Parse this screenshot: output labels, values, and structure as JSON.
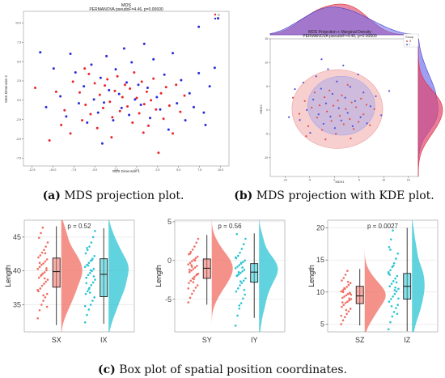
{
  "captions": {
    "a_label": "(a)",
    "a_text": " MDS projection plot.",
    "b_label": "(b)",
    "b_text": " MDS projection with KDE plot.",
    "c_label": "(c)",
    "c_text": " Box plot of spatial position coordinates."
  },
  "chart_data": [
    {
      "type": "scatter",
      "id": "mds",
      "title": "MDS",
      "subtitle": "PERMANOVA pseudoF=4.46, p=0.00600",
      "xlabel": "MDS Dimension 1",
      "ylabel": "MDS Dimension 2",
      "xlim": [
        -13.5,
        11
      ],
      "ylim": [
        -8.5,
        11.5
      ],
      "xticks": [
        -12.5,
        -10.0,
        -7.5,
        -5.0,
        -2.5,
        0.0,
        2.5,
        5.0,
        7.5,
        10.0
      ],
      "yticks": [
        -7.5,
        -5.0,
        -2.5,
        0.0,
        2.5,
        5.0,
        7.5,
        10.0
      ],
      "legend": "top-right",
      "colors": {
        "S": "#e8262b",
        "I": "#2b2bd8"
      },
      "series": [
        {
          "name": "S",
          "points": [
            [
              -12.1,
              1.6
            ],
            [
              -10.4,
              -5.2
            ],
            [
              -9.6,
              1.1
            ],
            [
              -8.6,
              -1.3
            ],
            [
              -7.9,
              -4.3
            ],
            [
              -7.6,
              2.4
            ],
            [
              -6.8,
              1.0
            ],
            [
              -6.5,
              -2.6
            ],
            [
              -6.1,
              -0.6
            ],
            [
              -5.7,
              3.4
            ],
            [
              -5.5,
              -1.8
            ],
            [
              -5.0,
              2.2
            ],
            [
              -4.7,
              -3.6
            ],
            [
              -4.4,
              0.7
            ],
            [
              -4.0,
              -1.0
            ],
            [
              -3.8,
              1.9
            ],
            [
              -3.5,
              2.7
            ],
            [
              -3.2,
              -0.2
            ],
            [
              -2.9,
              -2.2
            ],
            [
              -2.6,
              1.2
            ],
            [
              -2.3,
              3.1
            ],
            [
              -2.0,
              -1.4
            ],
            [
              -1.7,
              0.4
            ],
            [
              -1.4,
              2.0
            ],
            [
              -1.1,
              -0.8
            ],
            [
              -0.8,
              1.5
            ],
            [
              -0.5,
              -2.9
            ],
            [
              -0.3,
              3.6
            ],
            [
              0.0,
              0.3
            ],
            [
              0.3,
              -1.7
            ],
            [
              0.6,
              2.4
            ],
            [
              0.9,
              -0.5
            ],
            [
              1.2,
              1.1
            ],
            [
              1.4,
              -3.3
            ],
            [
              1.7,
              0.0
            ],
            [
              2.0,
              2.8
            ],
            [
              2.3,
              -1.2
            ],
            [
              2.6,
              -6.8
            ],
            [
              2.9,
              0.9
            ],
            [
              3.2,
              -2.4
            ],
            [
              3.5,
              1.7
            ],
            [
              3.9,
              -0.7
            ],
            [
              4.3,
              -4.3
            ],
            [
              4.7,
              2.0
            ],
            [
              5.2,
              -1.5
            ],
            [
              5.7,
              0.6
            ],
            [
              -9.0,
              -3.2
            ],
            [
              -3.0,
              -4.8
            ],
            [
              0.8,
              -4.2
            ],
            [
              -6.2,
              4.1
            ]
          ]
        },
        {
          "name": "I",
          "points": [
            [
              -11.5,
              6.2
            ],
            [
              -10.8,
              -0.9
            ],
            [
              -9.9,
              4.1
            ],
            [
              -9.1,
              0.5
            ],
            [
              -8.4,
              -2.1
            ],
            [
              -7.9,
              6.0
            ],
            [
              -7.3,
              3.6
            ],
            [
              -6.9,
              -0.4
            ],
            [
              -6.3,
              1.8
            ],
            [
              -5.9,
              -2.9
            ],
            [
              -5.4,
              4.6
            ],
            [
              -5.1,
              0.1
            ],
            [
              -4.6,
              -1.6
            ],
            [
              -4.3,
              2.9
            ],
            [
              -3.9,
              -0.3
            ],
            [
              -3.6,
              5.7
            ],
            [
              -3.3,
              1.3
            ],
            [
              -2.8,
              -2.6
            ],
            [
              -2.5,
              4.0
            ],
            [
              -2.1,
              0.8
            ],
            [
              -1.8,
              -1.0
            ],
            [
              -1.5,
              6.7
            ],
            [
              -1.2,
              2.3
            ],
            [
              -0.9,
              -1.9
            ],
            [
              -0.6,
              4.9
            ],
            [
              -0.2,
              0.1
            ],
            [
              0.2,
              2.0
            ],
            [
              0.5,
              -0.6
            ],
            [
              0.9,
              7.3
            ],
            [
              1.3,
              1.6
            ],
            [
              1.6,
              -2.3
            ],
            [
              2.0,
              5.3
            ],
            [
              2.4,
              0.4
            ],
            [
              2.8,
              -1.2
            ],
            [
              3.3,
              3.3
            ],
            [
              3.8,
              -3.8
            ],
            [
              4.3,
              6.1
            ],
            [
              4.8,
              -0.4
            ],
            [
              5.3,
              2.6
            ],
            [
              5.8,
              -2.6
            ],
            [
              6.3,
              0.9
            ],
            [
              6.8,
              -0.9
            ],
            [
              7.4,
              3.5
            ],
            [
              8.0,
              -1.6
            ],
            [
              8.7,
              1.8
            ],
            [
              9.3,
              4.2
            ],
            [
              9.7,
              10.6
            ],
            [
              8.2,
              -3.2
            ],
            [
              7.4,
              9.5
            ],
            [
              -4.1,
              -5.6
            ]
          ]
        }
      ]
    },
    {
      "type": "scatter",
      "id": "kde",
      "title": "MDS Projection + Marginal Density",
      "subtitle": "PERMANOVA pseudoF=4.46, p=0.00600",
      "xlabel": "MDS1",
      "ylabel": "MDS2",
      "xlim": [
        -13,
        17
      ],
      "ylim": [
        -14,
        15
      ],
      "xticks": [
        -10,
        -5,
        0,
        5,
        10,
        15
      ],
      "yticks": [
        -10,
        -5,
        0,
        5,
        10,
        15
      ],
      "legend_title": "Group",
      "legend": "top-right",
      "colors": {
        "S": "#e05050",
        "I": "#4f4fe0"
      },
      "ellipses": [
        {
          "name": "S",
          "cx": 0.6,
          "cy": 0.2,
          "rx": 9.2,
          "ry": 8.3,
          "color": "#f0a0a0"
        },
        {
          "name": "I",
          "cx": 1.4,
          "cy": 0.9,
          "rx": 6.8,
          "ry": 6.2,
          "color": "#a8a8e8"
        }
      ],
      "series": [
        {
          "name": "S",
          "points": [
            [
              -7.1,
              -0.8
            ],
            [
              -6.0,
              1.9
            ],
            [
              -5.3,
              -3.4
            ],
            [
              -4.6,
              0.5
            ],
            [
              -4.0,
              3.7
            ],
            [
              -3.5,
              -1.6
            ],
            [
              -3.0,
              1.0
            ],
            [
              -2.5,
              -4.2
            ],
            [
              -2.0,
              2.7
            ],
            [
              -1.5,
              -0.3
            ],
            [
              -1.0,
              4.1
            ],
            [
              -0.6,
              -2.3
            ],
            [
              -0.2,
              0.9
            ],
            [
              0.3,
              -5.0
            ],
            [
              0.7,
              2.0
            ],
            [
              1.1,
              -1.2
            ],
            [
              1.5,
              3.1
            ],
            [
              1.9,
              -3.0
            ],
            [
              2.3,
              0.2
            ],
            [
              2.7,
              5.3
            ],
            [
              3.1,
              -1.9
            ],
            [
              3.5,
              1.6
            ],
            [
              3.9,
              -4.0
            ],
            [
              4.4,
              0.6
            ],
            [
              4.9,
              -2.5
            ],
            [
              5.4,
              2.4
            ],
            [
              5.9,
              -0.9
            ],
            [
              6.5,
              1.1
            ],
            [
              7.2,
              -3.2
            ],
            [
              -5.7,
              -5.5
            ],
            [
              -1.8,
              -6.2
            ],
            [
              3.3,
              -6.0
            ],
            [
              -8.4,
              2.6
            ],
            [
              8.1,
              0.2
            ]
          ]
        },
        {
          "name": "I",
          "points": [
            [
              -8.0,
              4.4
            ],
            [
              -7.0,
              -2.1
            ],
            [
              -6.3,
              5.8
            ],
            [
              -5.6,
              0.0
            ],
            [
              -4.9,
              -4.8
            ],
            [
              -4.3,
              2.2
            ],
            [
              -3.7,
              7.1
            ],
            [
              -3.2,
              -0.9
            ],
            [
              -2.7,
              4.5
            ],
            [
              -2.2,
              -2.9
            ],
            [
              -1.7,
              1.4
            ],
            [
              -1.3,
              8.6
            ],
            [
              -0.8,
              -1.4
            ],
            [
              -0.4,
              3.4
            ],
            [
              0.1,
              -3.8
            ],
            [
              0.5,
              6.0
            ],
            [
              0.9,
              0.4
            ],
            [
              1.4,
              -2.2
            ],
            [
              1.8,
              9.4
            ],
            [
              2.2,
              2.6
            ],
            [
              2.7,
              -0.6
            ],
            [
              3.2,
              4.9
            ],
            [
              3.7,
              -3.4
            ],
            [
              4.2,
              1.9
            ],
            [
              4.8,
              7.5
            ],
            [
              5.3,
              -1.5
            ],
            [
              5.9,
              3.7
            ],
            [
              6.6,
              -2.8
            ],
            [
              7.3,
              0.8
            ],
            [
              8.4,
              2.9
            ],
            [
              9.5,
              -1.1
            ],
            [
              -9.2,
              -1.5
            ],
            [
              11.1,
              4.0
            ],
            [
              -2.6,
              10.7
            ]
          ]
        }
      ]
    },
    {
      "type": "box",
      "id": "box1",
      "annotation": "p = 0.52",
      "ylabel": "Length",
      "ylim": [
        31,
        47.5
      ],
      "yticks": [
        35,
        40,
        45
      ],
      "categories": [
        "SX",
        "IX"
      ],
      "colors": [
        "#f06e63",
        "#2bc4d4"
      ],
      "boxes": [
        {
          "min": 32.0,
          "q1": 37.6,
          "median": 39.9,
          "q3": 41.9,
          "max": 46.6
        },
        {
          "min": 32.2,
          "q1": 36.2,
          "median": 39.5,
          "q3": 41.8,
          "max": 46.3
        }
      ],
      "points": [
        [
          33.0,
          34.2,
          35.0,
          35.6,
          36.1,
          36.6,
          37.0,
          37.4,
          37.8,
          38.1,
          38.4,
          38.7,
          39.0,
          39.3,
          39.6,
          39.8,
          40.1,
          40.3,
          40.6,
          40.9,
          41.1,
          41.4,
          41.7,
          42.0,
          42.3,
          42.7,
          43.1,
          43.6,
          44.2,
          44.9,
          45.6,
          46.4,
          38.9,
          40.4,
          37.2,
          41.2,
          39.4,
          36.4,
          42.6,
          34.7
        ],
        [
          32.4,
          33.5,
          34.3,
          35.0,
          35.6,
          36.1,
          36.6,
          37.0,
          37.5,
          37.9,
          38.3,
          38.7,
          39.0,
          39.4,
          39.7,
          40.0,
          40.3,
          40.6,
          40.9,
          41.2,
          41.5,
          41.8,
          42.2,
          42.6,
          43.1,
          43.6,
          44.2,
          45.0,
          45.9,
          38.2,
          40.8,
          36.8,
          41.6,
          39.2,
          34.8,
          43.4,
          37.3,
          40.1
        ]
      ]
    },
    {
      "type": "box",
      "id": "box2",
      "annotation": "p = 0.56",
      "ylabel": "Length",
      "ylim": [
        -9.2,
        5.2
      ],
      "yticks": [
        -5,
        0,
        5
      ],
      "categories": [
        "SY",
        "IY"
      ],
      "colors": [
        "#f06e63",
        "#2bc4d4"
      ],
      "boxes": [
        {
          "min": -5.7,
          "q1": -2.3,
          "median": -1.0,
          "q3": 0.2,
          "max": 3.3
        },
        {
          "min": -7.4,
          "q1": -2.8,
          "median": -1.5,
          "q3": -0.4,
          "max": 3.5
        }
      ],
      "points": [
        [
          -5.4,
          -4.8,
          -4.3,
          -3.9,
          -3.5,
          -3.2,
          -2.9,
          -2.6,
          -2.3,
          -2.1,
          -1.9,
          -1.7,
          -1.5,
          -1.3,
          -1.1,
          -0.9,
          -0.7,
          -0.5,
          -0.3,
          -0.1,
          0.1,
          0.3,
          0.5,
          0.8,
          1.1,
          1.4,
          1.8,
          2.3,
          2.8,
          -1.2,
          -0.6,
          -2.8,
          0.0,
          -1.8,
          -3.6,
          0.9,
          -0.8,
          -2.4
        ],
        [
          -8.4,
          -7.1,
          -6.2,
          -5.5,
          -4.9,
          -4.4,
          -4.0,
          -3.6,
          -3.2,
          -2.9,
          -2.6,
          -2.3,
          -2.0,
          -1.8,
          -1.6,
          -1.4,
          -1.2,
          -1.0,
          -0.8,
          -0.6,
          -0.4,
          -0.2,
          0.0,
          0.3,
          0.6,
          1.0,
          1.5,
          2.1,
          2.8,
          3.4,
          -1.5,
          -2.7,
          -0.9,
          -3.8,
          0.4,
          -1.9,
          -5.8,
          -0.3
        ]
      ]
    },
    {
      "type": "box",
      "id": "box3",
      "annotation": "p = 0.0027",
      "ylabel": "Length",
      "ylim": [
        3.8,
        21.2
      ],
      "yticks": [
        5,
        10,
        15,
        20
      ],
      "categories": [
        "SZ",
        "IZ"
      ],
      "colors": [
        "#f06e63",
        "#2bc4d4"
      ],
      "boxes": [
        {
          "min": 4.8,
          "q1": 8.2,
          "median": 9.4,
          "q3": 10.9,
          "max": 13.6
        },
        {
          "min": 3.9,
          "q1": 8.9,
          "median": 10.9,
          "q3": 12.9,
          "max": 20.0
        }
      ],
      "points": [
        [
          5.0,
          5.6,
          6.1,
          6.6,
          7.0,
          7.4,
          7.7,
          8.0,
          8.3,
          8.5,
          8.7,
          8.9,
          9.1,
          9.3,
          9.5,
          9.7,
          9.9,
          10.1,
          10.3,
          10.5,
          10.8,
          11.1,
          11.4,
          11.8,
          12.2,
          12.7,
          13.3,
          9.0,
          9.6,
          8.4,
          10.6,
          7.2,
          11.6,
          9.8,
          6.3,
          10.0
        ],
        [
          4.2,
          5.3,
          6.2,
          6.9,
          7.5,
          8.0,
          8.5,
          8.9,
          9.3,
          9.7,
          10.1,
          10.5,
          10.9,
          11.3,
          11.7,
          12.1,
          12.5,
          12.9,
          13.4,
          13.9,
          14.5,
          15.2,
          16.0,
          17.0,
          18.2,
          19.6,
          10.3,
          11.5,
          9.0,
          12.7,
          7.8,
          14.1,
          10.7,
          6.6,
          13.1,
          16.6
        ]
      ]
    }
  ]
}
